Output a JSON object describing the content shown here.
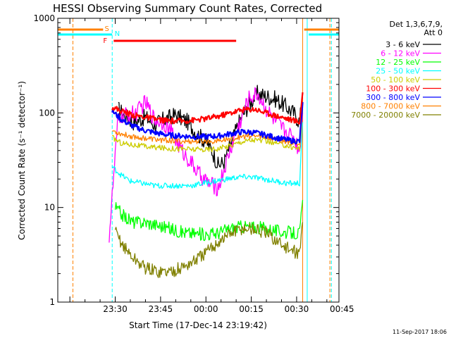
{
  "chart_data": {
    "type": "line",
    "title": "HESSI Observing Summary Count Rates, Corrected",
    "xlabel": "Start Time (17-Dec-14 23:19:42)",
    "ylabel": "Corrected Count Rate (s⁻¹ detector⁻¹)",
    "yscale": "log",
    "ylim": [
      1,
      1000
    ],
    "xlim_minutes": [
      -19,
      74
    ],
    "x_ticks": [
      {
        "label": "23:30",
        "min": 0
      },
      {
        "label": "23:45",
        "min": 15
      },
      {
        "label": "00:00",
        "min": 30
      },
      {
        "label": "00:15",
        "min": 45
      },
      {
        "label": "00:30",
        "min": 60
      },
      {
        "label": "00:45",
        "min": 75
      }
    ],
    "y_ticks": [
      {
        "label": "1",
        "value": 1
      },
      {
        "label": "10",
        "value": 10
      },
      {
        "label": "100",
        "value": 100
      },
      {
        "label": "1000",
        "value": 1000
      }
    ],
    "legend_header": [
      "Det 1,3,6,7,9,",
      "Att 0"
    ],
    "legend_position": "top-right",
    "series": [
      {
        "name": "3 - 6 keV",
        "color": "#000000",
        "points": [
          [
            1,
            110
          ],
          [
            3,
            95
          ],
          [
            6,
            80
          ],
          [
            10,
            90
          ],
          [
            13,
            75
          ],
          [
            16,
            85
          ],
          [
            20,
            95
          ],
          [
            24,
            80
          ],
          [
            27,
            60
          ],
          [
            30,
            50
          ],
          [
            32,
            40
          ],
          [
            34,
            28
          ],
          [
            36,
            30
          ],
          [
            38,
            45
          ],
          [
            41,
            80
          ],
          [
            44,
            120
          ],
          [
            47,
            160
          ],
          [
            50,
            150
          ],
          [
            53,
            140
          ],
          [
            56,
            120
          ],
          [
            59,
            100
          ],
          [
            61,
            80
          ],
          [
            62,
            160
          ]
        ]
      },
      {
        "name": "6 - 12 keV",
        "color": "#ff00ff",
        "points": [
          [
            -2,
            5
          ],
          [
            1,
            90
          ],
          [
            4,
            95
          ],
          [
            7,
            100
          ],
          [
            10,
            130
          ],
          [
            13,
            85
          ],
          [
            16,
            80
          ],
          [
            19,
            60
          ],
          [
            22,
            40
          ],
          [
            25,
            30
          ],
          [
            28,
            22
          ],
          [
            31,
            18
          ],
          [
            34,
            16
          ],
          [
            36,
            25
          ],
          [
            38,
            40
          ],
          [
            41,
            75
          ],
          [
            44,
            140
          ],
          [
            47,
            160
          ],
          [
            50,
            110
          ],
          [
            53,
            80
          ],
          [
            56,
            65
          ],
          [
            59,
            55
          ],
          [
            61,
            40
          ],
          [
            62,
            100
          ]
        ]
      },
      {
        "name": "12 - 25 keV",
        "color": "#00ff00",
        "points": [
          [
            0,
            10
          ],
          [
            3,
            8
          ],
          [
            6,
            7
          ],
          [
            10,
            7
          ],
          [
            14,
            6.5
          ],
          [
            18,
            6
          ],
          [
            22,
            5.5
          ],
          [
            26,
            5.3
          ],
          [
            30,
            5.2
          ],
          [
            34,
            5.4
          ],
          [
            38,
            6
          ],
          [
            42,
            6.3
          ],
          [
            46,
            6.2
          ],
          [
            50,
            6
          ],
          [
            54,
            5.6
          ],
          [
            58,
            5.4
          ],
          [
            61,
            5.3
          ],
          [
            62,
            12
          ]
        ]
      },
      {
        "name": "25 - 50 keV",
        "color": "#00ffff",
        "points": [
          [
            -1,
            27
          ],
          [
            2,
            22
          ],
          [
            5,
            19
          ],
          [
            9,
            18
          ],
          [
            13,
            17
          ],
          [
            17,
            17
          ],
          [
            21,
            17
          ],
          [
            25,
            17
          ],
          [
            29,
            18
          ],
          [
            33,
            19
          ],
          [
            37,
            20
          ],
          [
            41,
            21
          ],
          [
            45,
            21
          ],
          [
            49,
            20
          ],
          [
            53,
            19
          ],
          [
            57,
            18
          ],
          [
            61,
            18
          ],
          [
            62,
            80
          ]
        ]
      },
      {
        "name": "50 - 100 keV",
        "color": "#cccc00",
        "points": [
          [
            -1,
            55
          ],
          [
            2,
            48
          ],
          [
            6,
            46
          ],
          [
            10,
            44
          ],
          [
            14,
            43
          ],
          [
            18,
            42
          ],
          [
            22,
            42
          ],
          [
            26,
            41
          ],
          [
            30,
            41
          ],
          [
            34,
            42
          ],
          [
            38,
            45
          ],
          [
            42,
            50
          ],
          [
            46,
            52
          ],
          [
            50,
            50
          ],
          [
            54,
            47
          ],
          [
            58,
            44
          ],
          [
            61,
            42
          ],
          [
            62,
            110
          ]
        ]
      },
      {
        "name": "100 - 300 keV",
        "color": "#ff0000",
        "points": [
          [
            -1,
            115
          ],
          [
            2,
            105
          ],
          [
            6,
            95
          ],
          [
            10,
            90
          ],
          [
            14,
            85
          ],
          [
            18,
            82
          ],
          [
            22,
            82
          ],
          [
            26,
            84
          ],
          [
            30,
            87
          ],
          [
            34,
            92
          ],
          [
            38,
            100
          ],
          [
            42,
            108
          ],
          [
            46,
            110
          ],
          [
            50,
            100
          ],
          [
            54,
            92
          ],
          [
            58,
            85
          ],
          [
            61,
            80
          ],
          [
            62,
            165
          ]
        ]
      },
      {
        "name": "300 - 800 keV",
        "color": "#0000ff",
        "points": [
          [
            -1,
            105
          ],
          [
            2,
            85
          ],
          [
            6,
            72
          ],
          [
            10,
            65
          ],
          [
            14,
            61
          ],
          [
            18,
            58
          ],
          [
            22,
            57
          ],
          [
            26,
            56
          ],
          [
            30,
            56
          ],
          [
            34,
            57
          ],
          [
            38,
            60
          ],
          [
            42,
            63
          ],
          [
            46,
            62
          ],
          [
            50,
            58
          ],
          [
            54,
            54
          ],
          [
            58,
            51
          ],
          [
            61,
            50
          ],
          [
            62,
            130
          ]
        ]
      },
      {
        "name": "800 - 7000 keV",
        "color": "#ff8000",
        "points": [
          [
            -1,
            65
          ],
          [
            2,
            60
          ],
          [
            6,
            56
          ],
          [
            10,
            54
          ],
          [
            14,
            52
          ],
          [
            18,
            51
          ],
          [
            22,
            50
          ],
          [
            26,
            50
          ],
          [
            30,
            50
          ],
          [
            34,
            51
          ],
          [
            38,
            53
          ],
          [
            42,
            56
          ],
          [
            46,
            57
          ],
          [
            50,
            55
          ],
          [
            54,
            52
          ],
          [
            58,
            49
          ],
          [
            61,
            48
          ],
          [
            62,
            115
          ]
        ]
      },
      {
        "name": "7000 - 20000 keV",
        "color": "#808000",
        "points": [
          [
            0,
            5.5
          ],
          [
            3,
            3.8
          ],
          [
            6,
            2.9
          ],
          [
            10,
            2.3
          ],
          [
            14,
            2.1
          ],
          [
            18,
            2.1
          ],
          [
            22,
            2.3
          ],
          [
            26,
            2.7
          ],
          [
            30,
            3.3
          ],
          [
            34,
            4.3
          ],
          [
            38,
            5.3
          ],
          [
            42,
            6
          ],
          [
            46,
            5.9
          ],
          [
            50,
            5.3
          ],
          [
            54,
            4.3
          ],
          [
            58,
            3.5
          ],
          [
            61,
            3.3
          ],
          [
            62,
            7
          ]
        ]
      }
    ],
    "markers": [
      {
        "label": "S",
        "color": "#ff8000"
      },
      {
        "label": "N",
        "color": "#00ffff"
      },
      {
        "label": "F",
        "color": "#ff0000"
      }
    ]
  },
  "footer": {
    "timestamp": "11-Sep-2017 18:06"
  }
}
